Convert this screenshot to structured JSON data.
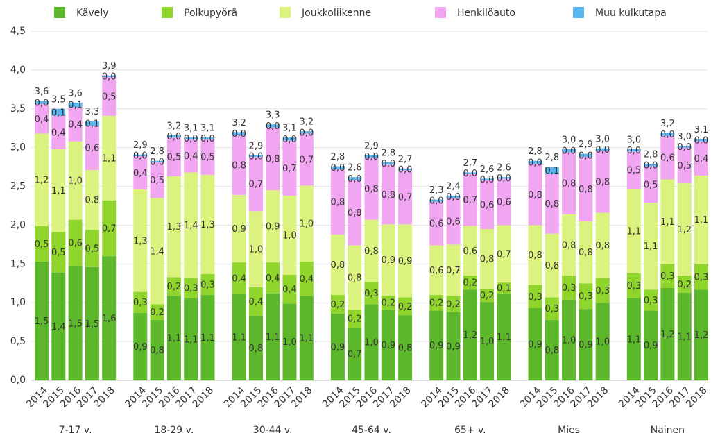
{
  "chart_data": {
    "type": "stacked_bar",
    "groups": [
      "7-17 v.",
      "18-29 v.",
      "30-44 v.",
      "45-64 v.",
      "65+ v.",
      "Mies",
      "Nainen"
    ],
    "categories": [
      "2014",
      "2015",
      "2016",
      "2017",
      "2018",
      "2014",
      "2015",
      "2016",
      "2017",
      "2018",
      "2014",
      "2015",
      "2016",
      "2017",
      "2018",
      "2014",
      "2015",
      "2016",
      "2017",
      "2018",
      "2014",
      "2015",
      "2016",
      "2017",
      "2018",
      "2014",
      "2015",
      "2016",
      "2017",
      "2018",
      "2014",
      "2015",
      "2016",
      "2017",
      "2018"
    ],
    "series": [
      {
        "name": "Kävely",
        "color": "#5cb82a",
        "values": [
          1.53,
          1.39,
          1.47,
          1.46,
          1.6,
          0.87,
          0.78,
          1.09,
          1.06,
          1.1,
          1.11,
          0.83,
          1.12,
          0.99,
          1.09,
          0.86,
          0.68,
          0.98,
          0.91,
          0.84,
          0.9,
          0.88,
          1.17,
          1.01,
          1.12,
          0.93,
          0.78,
          1.04,
          0.92,
          1.0,
          1.06,
          0.9,
          1.19,
          1.13,
          1.17
        ],
        "value_labels": [
          "1,5",
          "1,4",
          "1,5",
          "1,5",
          "1,6",
          "0,9",
          "0,8",
          "1,1",
          "1,1",
          "1,1",
          "1,1",
          "0,8",
          "1,1",
          "1,0",
          "1,1",
          "0,9",
          "0,7",
          "1,0",
          "0,9",
          "0,8",
          "0,9",
          "0,9",
          "1,2",
          "1,0",
          "1,1",
          "0,9",
          "0,8",
          "1,0",
          "0,9",
          "1,0",
          "1,1",
          "0,9",
          "1,2",
          "1,1",
          "1,2"
        ]
      },
      {
        "name": "Polkupyörä",
        "color": "#8fd52c",
        "values": [
          0.46,
          0.52,
          0.6,
          0.48,
          0.72,
          0.27,
          0.2,
          0.24,
          0.26,
          0.27,
          0.41,
          0.37,
          0.4,
          0.37,
          0.44,
          0.24,
          0.23,
          0.29,
          0.18,
          0.23,
          0.2,
          0.21,
          0.18,
          0.17,
          0.14,
          0.3,
          0.29,
          0.31,
          0.33,
          0.32,
          0.32,
          0.27,
          0.31,
          0.22,
          0.33
        ],
        "value_labels": [
          "0,5",
          "0,5",
          "0,6",
          "0,5",
          "0,7",
          "0,3",
          "0,2",
          "0,2",
          "0,3",
          "0,3",
          "0,4",
          "0,4",
          "0,4",
          "0,4",
          "0,4",
          "0,2",
          "0,2",
          "0,3",
          "0,2",
          "0,2",
          "0,2",
          "0,2",
          "0,2",
          "0,2",
          "0,1",
          "0,3",
          "0,3",
          "0,3",
          "0,3",
          "0,3",
          "0,3",
          "0,3",
          "0,3",
          "0,2",
          "0,3"
        ]
      },
      {
        "name": "Joukkoliikenne",
        "color": "#dcf27e",
        "values": [
          1.19,
          1.07,
          1.01,
          0.77,
          1.09,
          1.32,
          1.37,
          1.3,
          1.36,
          1.28,
          0.87,
          0.98,
          0.93,
          1.02,
          0.98,
          0.78,
          0.83,
          0.8,
          0.92,
          0.94,
          0.64,
          0.66,
          0.64,
          0.77,
          0.74,
          0.77,
          0.82,
          0.79,
          0.8,
          0.84,
          1.09,
          1.12,
          1.09,
          1.19,
          1.14
        ],
        "value_labels": [
          "1,2",
          "1,1",
          "1,0",
          "0,8",
          "1,1",
          "1,3",
          "1,4",
          "1,3",
          "1,4",
          "1,3",
          "0,9",
          "1,0",
          "0,9",
          "1,0",
          "1,0",
          "0,8",
          "0,8",
          "0,8",
          "0,9",
          "0,9",
          "0,6",
          "0,7",
          "0,6",
          "0,8",
          "0,7",
          "0,8",
          "0,8",
          "0,8",
          "0,8",
          "0,8",
          "1,1",
          "1,1",
          "1,1",
          "1,2",
          "1,1"
        ]
      },
      {
        "name": "Henkilöauto",
        "color": "#f0a6f0",
        "values": [
          0.38,
          0.43,
          0.44,
          0.57,
          0.5,
          0.43,
          0.46,
          0.5,
          0.43,
          0.46,
          0.77,
          0.7,
          0.81,
          0.71,
          0.67,
          0.84,
          0.84,
          0.8,
          0.77,
          0.7,
          0.56,
          0.6,
          0.67,
          0.63,
          0.6,
          0.79,
          0.77,
          0.8,
          0.83,
          0.8,
          0.48,
          0.47,
          0.56,
          0.46,
          0.44
        ],
        "value_labels": [
          "0,4",
          "0,4",
          "0,4",
          "0,6",
          "0,5",
          "0,4",
          "0,5",
          "0,5",
          "0,4",
          "0,5",
          "0,8",
          "0,7",
          "0,8",
          "0,7",
          "0,7",
          "0,8",
          "0,8",
          "0,8",
          "0,8",
          "0,7",
          "0,6",
          "0,6",
          "0,7",
          "0,6",
          "0,6",
          "0,8",
          "0,8",
          "0,8",
          "0,8",
          "0,8",
          "0,5",
          "0,5",
          "0,6",
          "0,5",
          "0,4"
        ]
      },
      {
        "name": "Muu kulkutapa",
        "color": "#5ab4ee",
        "values": [
          0.04,
          0.09,
          0.06,
          0.06,
          0.02,
          0.02,
          0.02,
          0.03,
          0.02,
          0.02,
          0.04,
          0.02,
          0.04,
          0.04,
          0.03,
          0.04,
          0.04,
          0.03,
          0.03,
          0.02,
          0.03,
          0.03,
          0.02,
          0.02,
          0.02,
          0.04,
          0.09,
          0.04,
          0.04,
          0.03,
          0.03,
          0.03,
          0.04,
          0.02,
          0.03
        ],
        "value_labels": [
          "0,0",
          "0,1",
          "0,1",
          "0,1",
          "0,0",
          "0,0",
          "0,0",
          "0,0",
          "0,0",
          "0,0",
          "0,0",
          "0,0",
          "0,0",
          "0,0",
          "0,0",
          "0,0",
          "0,0",
          "0,0",
          "0,0",
          "0,0",
          "0,0",
          "0,0",
          "0,0",
          "0,0",
          "0,0",
          "0,0",
          "0,1",
          "0,0",
          "0,0",
          "0,0",
          "0,0",
          "0,0",
          "0,0",
          "0,0",
          "0,0"
        ]
      }
    ],
    "totals": {
      "values": [
        3.6,
        3.5,
        3.58,
        3.34,
        3.93,
        2.91,
        2.83,
        3.16,
        3.13,
        3.13,
        3.2,
        2.9,
        3.3,
        3.13,
        3.21,
        2.76,
        2.62,
        2.9,
        2.81,
        2.73,
        2.33,
        2.38,
        2.68,
        2.6,
        2.62,
        2.83,
        2.75,
        2.98,
        2.92,
        2.99,
        2.98,
        2.79,
        3.19,
        3.02,
        3.11
      ],
      "value_labels": [
        "3,6",
        "3,5",
        "3,6",
        "3,3",
        "3,9",
        "2,9",
        "2,8",
        "3,2",
        "3,1",
        "3,1",
        "3,2",
        "2,9",
        "3,3",
        "3,1",
        "3,2",
        "2,8",
        "2,6",
        "2,9",
        "2,8",
        "2,7",
        "2,3",
        "2,4",
        "2,7",
        "2,6",
        "2,6",
        "2,8",
        "2,8",
        "3,0",
        "2,9",
        "3,0",
        "3,0",
        "2,8",
        "3,2",
        "3,0",
        "3,1"
      ]
    },
    "ylim": [
      0,
      4.5
    ],
    "yticks": [
      {
        "value": 0,
        "label": "0,0"
      },
      {
        "value": 0.5,
        "label": "0,5"
      },
      {
        "value": 1,
        "label": "1,0"
      },
      {
        "value": 1.5,
        "label": "1,5"
      },
      {
        "value": 2,
        "label": "2,0"
      },
      {
        "value": 2.5,
        "label": "2,5"
      },
      {
        "value": 3,
        "label": "3,0"
      },
      {
        "value": 3.5,
        "label": "3,5"
      },
      {
        "value": 4,
        "label": "4,0"
      },
      {
        "value": 4.5,
        "label": "4,5"
      }
    ],
    "grid": true,
    "legend": "top"
  }
}
